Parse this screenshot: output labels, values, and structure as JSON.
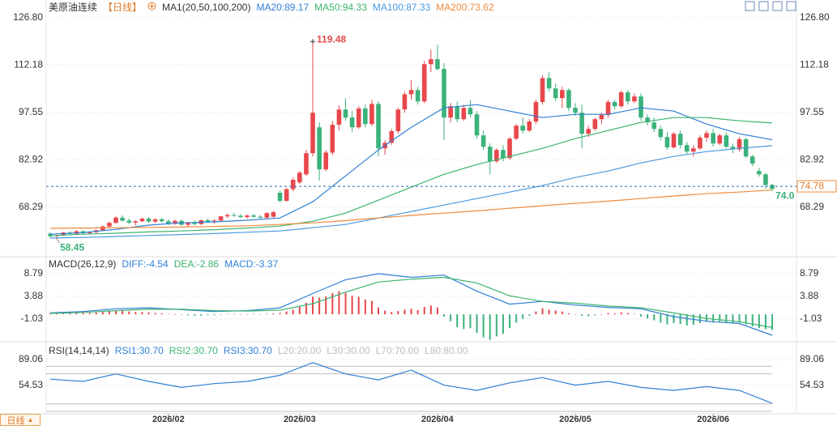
{
  "header": {
    "symbol": "美原油连续",
    "period": "【日线】"
  },
  "footer": {
    "period_button": "日线"
  },
  "chart_data": [
    {
      "type": "candlestick",
      "title": "MA1(20,50,100,200)",
      "up_color": "#e8474c",
      "down_color": "#3bb27a",
      "xlim": [
        -0.62,
        113.7
      ],
      "xticks": [
        {
          "value": 18,
          "label": "2026/02"
        },
        {
          "value": 38,
          "label": "2026/03"
        },
        {
          "value": 59,
          "label": "2026/04"
        },
        {
          "value": 80,
          "label": "2026/05"
        },
        {
          "value": 101,
          "label": "2026/06"
        }
      ],
      "ylim": [
        53.55,
        129.8
      ],
      "yticks": [
        {
          "value": 126.8,
          "label": "126.80"
        },
        112.18,
        97.55,
        82.92,
        68.29
      ],
      "ohlc": [
        [
          60.2,
          60.6,
          58.9,
          59.4
        ],
        [
          59.4,
          60.0,
          58.45,
          59.7
        ],
        [
          59.7,
          60.8,
          59.5,
          60.5
        ],
        [
          60.5,
          60.9,
          59.8,
          60.1
        ],
        [
          60.1,
          61.3,
          59.9,
          60.9
        ],
        [
          60.9,
          61.2,
          60.0,
          60.3
        ],
        [
          60.3,
          60.9,
          59.8,
          60.6
        ],
        [
          60.6,
          61.5,
          60.3,
          61.2
        ],
        [
          61.2,
          62.7,
          61.0,
          62.4
        ],
        [
          62.4,
          63.9,
          62.1,
          63.5
        ],
        [
          63.5,
          65.6,
          63.2,
          65.1
        ],
        [
          65.1,
          65.8,
          63.8,
          64.2
        ],
        [
          64.2,
          64.9,
          63.1,
          63.6
        ],
        [
          63.6,
          64.3,
          62.8,
          64.0
        ],
        [
          64.0,
          65.2,
          63.7,
          64.8
        ],
        [
          64.8,
          65.3,
          63.5,
          63.9
        ],
        [
          63.9,
          64.9,
          63.4,
          64.6
        ],
        [
          64.6,
          65.1,
          63.6,
          64.0
        ],
        [
          64.0,
          64.7,
          62.8,
          63.2
        ],
        [
          63.2,
          64.5,
          62.9,
          64.1
        ],
        [
          64.1,
          64.6,
          62.6,
          62.9
        ],
        [
          62.9,
          63.8,
          62.3,
          63.5
        ],
        [
          63.5,
          64.2,
          62.8,
          63.1
        ],
        [
          63.1,
          64.5,
          62.9,
          64.3
        ],
        [
          64.3,
          64.8,
          63.5,
          63.8
        ],
        [
          63.8,
          64.6,
          63.2,
          64.2
        ],
        [
          64.2,
          65.7,
          64.0,
          65.5
        ],
        [
          65.5,
          66.4,
          65.0,
          65.9
        ],
        [
          65.9,
          66.7,
          65.4,
          65.7
        ],
        [
          65.7,
          66.2,
          64.9,
          65.3
        ],
        [
          65.3,
          66.0,
          64.8,
          65.8
        ],
        [
          65.8,
          66.3,
          65.1,
          65.4
        ],
        [
          65.4,
          65.9,
          64.8,
          65.1
        ],
        [
          65.1,
          66.8,
          64.9,
          66.5
        ],
        [
          65.4,
          67.3,
          65.0,
          66.8
        ],
        [
          72.8,
          73.5,
          69.7,
          70.3
        ],
        [
          70.3,
          74.3,
          70.0,
          73.9
        ],
        [
          73.9,
          77.5,
          73.2,
          76.8
        ],
        [
          76.0,
          79.5,
          75.5,
          79.0
        ],
        [
          78.5,
          86.0,
          78.0,
          85.0
        ],
        [
          85.0,
          119.48,
          84.0,
          97.5
        ],
        [
          93.0,
          94.5,
          76.5,
          80.0
        ],
        [
          80.0,
          86.0,
          79.5,
          85.2
        ],
        [
          85.2,
          95.0,
          84.5,
          93.8
        ],
        [
          93.8,
          99.8,
          92.0,
          98.5
        ],
        [
          98.5,
          102.0,
          95.0,
          96.0
        ],
        [
          96.0,
          98.0,
          91.5,
          93.0
        ],
        [
          93.0,
          99.5,
          92.5,
          98.8
        ],
        [
          98.8,
          100.0,
          93.0,
          94.0
        ],
        [
          94.0,
          101.5,
          93.5,
          100.2
        ],
        [
          100.2,
          101.0,
          84.0,
          86.5
        ],
        [
          86.5,
          89.0,
          84.5,
          88.2
        ],
        [
          88.2,
          92.5,
          87.5,
          91.8
        ],
        [
          91.8,
          99.0,
          91.0,
          98.5
        ],
        [
          98.5,
          104.0,
          97.5,
          103.2
        ],
        [
          103.2,
          107.5,
          101.5,
          104.5
        ],
        [
          104.5,
          105.5,
          100.0,
          101.0
        ],
        [
          101.0,
          113.5,
          100.5,
          112.5
        ],
        [
          112.5,
          117.0,
          110.0,
          114.0
        ],
        [
          114.0,
          118.5,
          110.5,
          111.0
        ],
        [
          111.0,
          112.8,
          89.0,
          96.0
        ],
        [
          96.0,
          100.5,
          94.5,
          99.5
        ],
        [
          99.5,
          101.0,
          94.5,
          95.5
        ],
        [
          95.5,
          100.0,
          95.0,
          99.0
        ],
        [
          99.0,
          101.5,
          96.0,
          97.0
        ],
        [
          97.0,
          98.0,
          89.5,
          90.5
        ],
        [
          90.5,
          92.0,
          86.0,
          87.0
        ],
        [
          87.0,
          88.0,
          78.5,
          82.5
        ],
        [
          82.5,
          86.5,
          82.0,
          86.0
        ],
        [
          86.0,
          87.5,
          82.5,
          83.5
        ],
        [
          83.5,
          90.0,
          83.0,
          89.5
        ],
        [
          89.5,
          94.0,
          89.0,
          93.5
        ],
        [
          93.5,
          96.0,
          91.0,
          92.0
        ],
        [
          92.0,
          95.5,
          91.5,
          94.8
        ],
        [
          94.8,
          101.5,
          94.0,
          100.8
        ],
        [
          100.8,
          109.0,
          100.0,
          108.2
        ],
        [
          108.2,
          110.0,
          104.0,
          105.0
        ],
        [
          105.0,
          106.5,
          101.0,
          102.0
        ],
        [
          102.0,
          105.5,
          99.0,
          104.5
        ],
        [
          104.5,
          105.0,
          98.0,
          99.0
        ],
        [
          99.0,
          100.5,
          96.5,
          97.5
        ],
        [
          97.5,
          100.0,
          86.5,
          91.0
        ],
        [
          91.0,
          93.5,
          90.0,
          92.5
        ],
        [
          92.5,
          96.0,
          92.0,
          95.5
        ],
        [
          95.5,
          97.5,
          94.0,
          96.8
        ],
        [
          96.8,
          101.5,
          96.0,
          100.8
        ],
        [
          100.8,
          101.5,
          98.5,
          99.5
        ],
        [
          99.5,
          104.5,
          99.0,
          103.8
        ],
        [
          103.8,
          104.5,
          100.0,
          101.0
        ],
        [
          101.0,
          103.5,
          100.5,
          102.5
        ],
        [
          102.5,
          103.5,
          95.0,
          96.0
        ],
        [
          96.0,
          97.0,
          93.5,
          94.5
        ],
        [
          94.5,
          96.0,
          91.5,
          92.5
        ],
        [
          92.5,
          93.5,
          89.0,
          90.0
        ],
        [
          90.0,
          91.5,
          86.0,
          86.8
        ],
        [
          86.8,
          91.5,
          86.5,
          91.0
        ],
        [
          91.0,
          92.0,
          86.5,
          87.5
        ],
        [
          87.5,
          88.5,
          84.5,
          85.5
        ],
        [
          85.5,
          87.5,
          84.0,
          86.5
        ],
        [
          86.5,
          90.5,
          86.0,
          89.8
        ],
        [
          89.8,
          92.0,
          88.5,
          91.2
        ],
        [
          91.2,
          92.5,
          87.0,
          88.0
        ],
        [
          88.0,
          91.0,
          87.5,
          90.5
        ],
        [
          90.5,
          91.5,
          86.5,
          87.0
        ],
        [
          87.0,
          88.0,
          85.0,
          86.2
        ],
        [
          86.2,
          90.0,
          85.5,
          89.3
        ],
        [
          89.3,
          89.8,
          83.5,
          84.0
        ],
        [
          84.0,
          84.5,
          81.0,
          81.8
        ],
        [
          79.5,
          80.5,
          77.8,
          78.5
        ],
        [
          78.5,
          78.9,
          74.0,
          75.2
        ],
        [
          75.2,
          75.6,
          73.3,
          74.0
        ]
      ],
      "line_x": [
        0,
        5,
        10,
        15,
        20,
        25,
        30,
        35,
        40,
        45,
        50,
        55,
        60,
        65,
        70,
        75,
        80,
        85,
        90,
        95,
        100,
        105,
        110
      ],
      "series": [
        {
          "name": "MA20:89.17",
          "color": "#2f7fd4",
          "values": [
            60,
            60.5,
            61.5,
            62.8,
            63.5,
            63.8,
            64.3,
            65,
            70,
            78,
            86,
            93,
            99,
            100,
            98,
            96,
            97,
            97,
            99,
            98,
            94,
            91,
            89.17
          ]
        },
        {
          "name": "MA50:94.33",
          "color": "#3cb371",
          "values": [
            59.5,
            60,
            60.3,
            60.7,
            61,
            61.4,
            61.9,
            62.5,
            64,
            66.5,
            70.5,
            74.5,
            78.5,
            81.5,
            84,
            86.5,
            89.5,
            92,
            94.5,
            96,
            96,
            95,
            94.33
          ]
        },
        {
          "name": "MA100:87.33",
          "color": "#4a9ae0",
          "values": [
            58.8,
            59,
            59.3,
            59.6,
            59.9,
            60.2,
            60.6,
            61,
            62,
            63,
            65,
            67,
            69,
            71,
            73,
            75,
            77.5,
            79.5,
            82,
            84,
            85.5,
            86.5,
            87.33
          ]
        },
        {
          "name": "MA200:73.62",
          "color": "#ee8a3c",
          "values": [
            61.8,
            61.9,
            62,
            62.1,
            62.2,
            62.4,
            62.6,
            63,
            63.5,
            64.2,
            65,
            65.8,
            66.5,
            67.2,
            68,
            68.8,
            69.5,
            70.2,
            71,
            71.8,
            72.5,
            73,
            73.62
          ]
        }
      ],
      "high_marker": {
        "x": 40,
        "value": 119.48
      },
      "low_marker": {
        "x": 1,
        "value": 58.45
      },
      "last_label": "74.0",
      "current_price": 74.78
    },
    {
      "type": "macd",
      "title": "MACD(26,12,9)",
      "ylim": [
        -5.59,
        11.95
      ],
      "yticks": [
        8.79,
        3.88,
        -1.03
      ],
      "series": [
        {
          "name": "DIFF:-4.54",
          "color": "#2f7fd4",
          "values": [
            0.3,
            0.6,
            1.2,
            1.4,
            1.0,
            0.6,
            0.8,
            1.4,
            4.5,
            7.5,
            8.8,
            8.0,
            8.5,
            5.0,
            2.2,
            2.8,
            2.0,
            1.5,
            1.2,
            -0.5,
            -1.5,
            -2.0,
            -4.54
          ]
        },
        {
          "name": "DEA:-2.86",
          "color": "#3cb371",
          "values": [
            0.2,
            0.4,
            0.8,
            1.1,
            1.1,
            0.8,
            0.7,
            0.9,
            2.3,
            4.8,
            7.0,
            7.6,
            8.0,
            6.8,
            4.0,
            2.8,
            2.4,
            1.8,
            1.4,
            0.3,
            -0.9,
            -1.6,
            -2.86
          ]
        }
      ],
      "histogram": {
        "name": "MACD:-3.37",
        "color": "#2f7fd4",
        "up_color": "#e8474c",
        "down_color": "#3bb27a",
        "values": [
          0.2,
          0.3,
          0.2,
          0.3,
          0.4,
          0.3,
          0.3,
          0.4,
          0.5,
          0.7,
          0.9,
          0.8,
          0.6,
          0.5,
          0.5,
          0.4,
          0.3,
          0.2,
          0.1,
          0,
          -0.1,
          -0.2,
          -0.3,
          -0.3,
          -0.2,
          -0.2,
          0,
          0.1,
          0.1,
          0,
          0,
          0.1,
          0,
          0.1,
          0.2,
          0.3,
          0.6,
          1.0,
          1.6,
          2.5,
          3.8,
          3.6,
          3.9,
          4.6,
          5.0,
          4.6,
          4.0,
          3.8,
          3.2,
          2.9,
          1.5,
          0.8,
          0.5,
          0.7,
          1.0,
          1.2,
          0.9,
          1.6,
          1.9,
          1.5,
          -0.5,
          -1.5,
          -2.8,
          -3.2,
          -3.0,
          -4.0,
          -5.0,
          -5.5,
          -4.8,
          -4.2,
          -3.0,
          -1.8,
          -1.0,
          -0.3,
          0.6,
          1.3,
          1.0,
          0.8,
          0.6,
          0.2,
          0,
          -0.3,
          -0.4,
          -0.2,
          0,
          0.3,
          0.2,
          0.4,
          0.3,
          0.1,
          -0.5,
          -0.9,
          -1.3,
          -1.8,
          -2.2,
          -1.9,
          -2.1,
          -2.4,
          -2.3,
          -1.9,
          -1.6,
          -1.8,
          -1.6,
          -1.8,
          -2.0,
          -1.8,
          -2.2,
          -2.6,
          -3.0,
          -3.2,
          -3.37
        ]
      }
    },
    {
      "type": "rsi",
      "title": "RSI(14,14,14)",
      "ylim": [
        17.85,
        109.6
      ],
      "yticks": [
        89.06,
        54.53
      ],
      "series": [
        {
          "name": "RSI1:30.70",
          "color": "#2f7fd4",
          "values": [
            63,
            60,
            70,
            60,
            52,
            57,
            60,
            68,
            85,
            70,
            62,
            75,
            55,
            48,
            58,
            65,
            55,
            60,
            52,
            48,
            53,
            48,
            30.7
          ]
        },
        {
          "name": "RSI2:30.70",
          "color": "#3cb371"
        },
        {
          "name": "RSI3:30.70",
          "color": "#2f7fd4"
        }
      ],
      "levels": [
        20,
        30,
        70,
        80
      ],
      "level_labels": [
        "L20:20.00",
        "L30:30.00",
        "L70:70.00",
        "L80:80.00"
      ],
      "level_color": "#bdbdbd"
    }
  ]
}
